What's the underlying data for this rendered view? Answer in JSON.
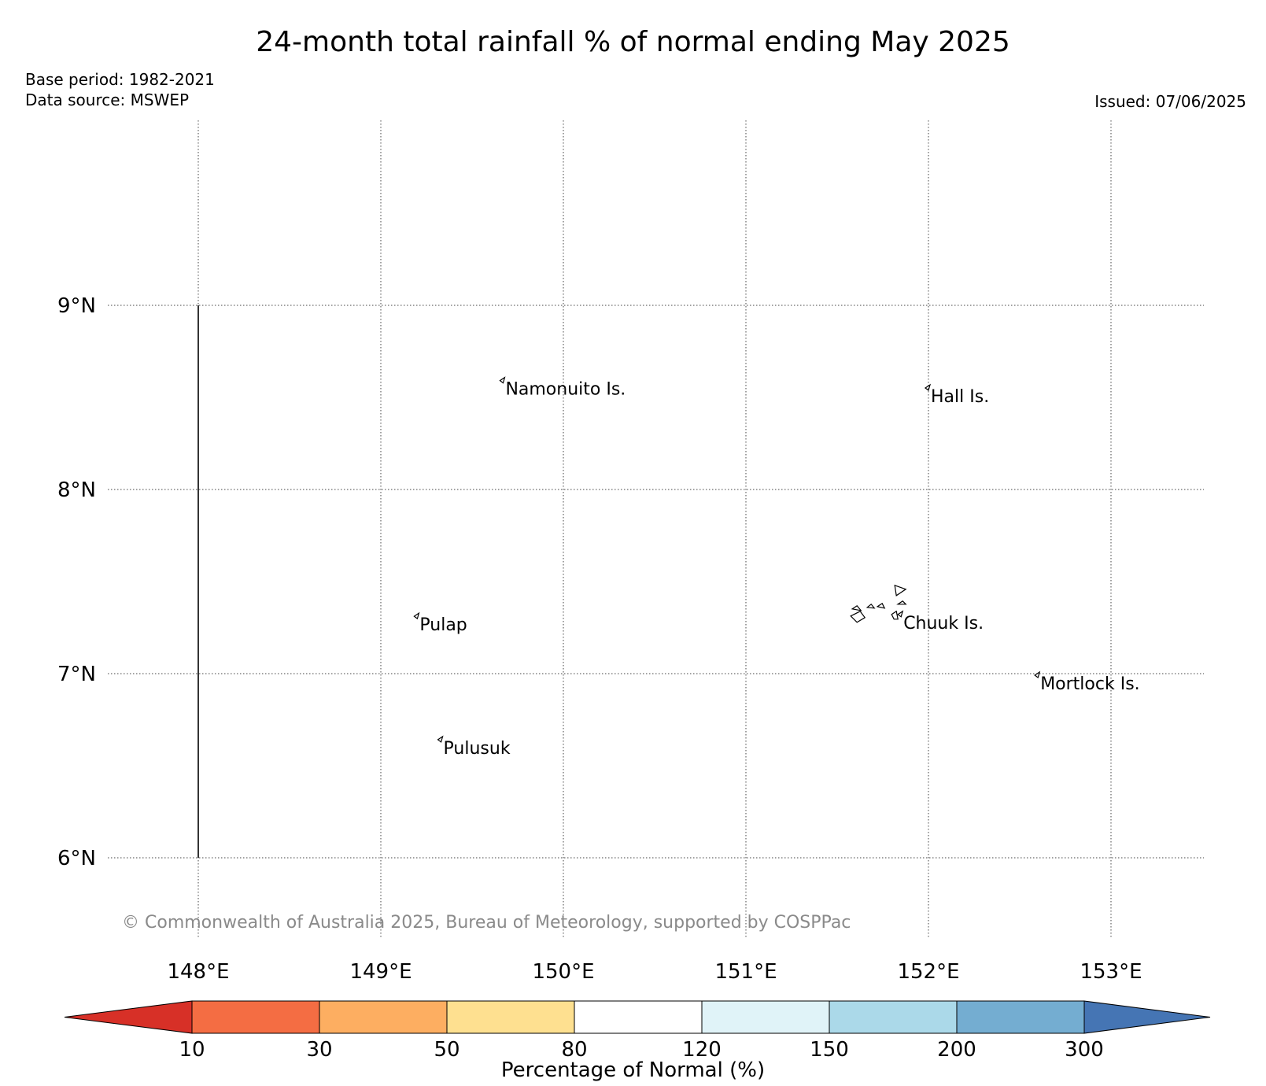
{
  "title": "24-month total rainfall % of normal ending May 2025",
  "base_period": "Base period: 1982-2021",
  "data_source": "Data source: MSWEP",
  "issued": "Issued: 07/06/2025",
  "copyright": "© Commonwealth of Australia 2025, Bureau of Meteorology, supported by COSPPac",
  "map": {
    "lon_range": [
      147.5,
      153.5
    ],
    "lat_range": [
      5.55,
      9.99
    ],
    "grid": "dotted",
    "lon_ticks": [
      148,
      149,
      150,
      151,
      152,
      153
    ],
    "lon_labels": [
      "148°E",
      "149°E",
      "150°E",
      "151°E",
      "152°E",
      "153°E"
    ],
    "lat_ticks": [
      6,
      7,
      8,
      9
    ],
    "lat_labels": [
      "6°N",
      "7°N",
      "8°N",
      "9°N"
    ],
    "border_meridian": {
      "lon": 148,
      "lat_from": 6,
      "lat_to": 9
    },
    "islands": [
      {
        "name": "Namonuito Is.",
        "lon": 149.67,
        "lat": 8.57
      },
      {
        "name": "Hall Is.",
        "lon": 152.0,
        "lat": 8.53
      },
      {
        "name": "Pulap",
        "lon": 149.2,
        "lat": 7.29
      },
      {
        "name": "Chuuk Is.",
        "lon": 151.85,
        "lat": 7.3
      },
      {
        "name": "Mortlock Is.",
        "lon": 152.6,
        "lat": 6.97
      },
      {
        "name": "Pulusuk",
        "lon": 149.33,
        "lat": 6.62
      }
    ]
  },
  "colorbar": {
    "label": "Percentage of Normal (%)",
    "ticks": [
      "10",
      "30",
      "50",
      "80",
      "120",
      "150",
      "200",
      "300"
    ],
    "under_color": "#d73027",
    "over_color": "#4575b4",
    "colors": [
      "#f46d43",
      "#fdae61",
      "#fee090",
      "#ffffff",
      "#e0f3f8",
      "#abd9e9",
      "#74add1"
    ]
  }
}
